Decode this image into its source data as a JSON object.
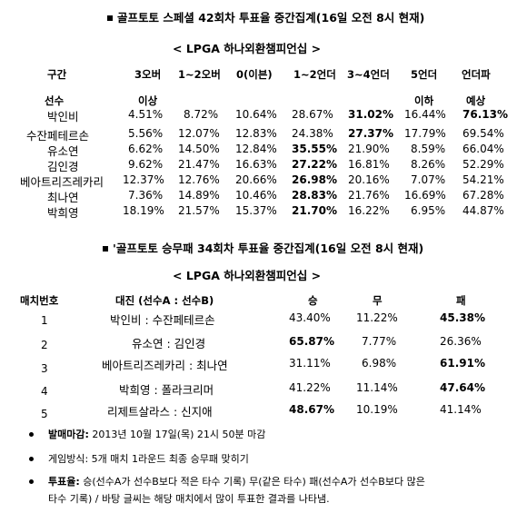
{
  "section1": {
    "title": "골프토토 스페셜 42회차 투표율 중간집계(16일 오전 8시 현재)",
    "subtitle": "< LPGA 하나외환챔피언십 >",
    "header": [
      "구간",
      "3오버",
      "1~2오버",
      "0(이븐)",
      "1~2언더",
      "3~4언더",
      "5언더",
      "언더파"
    ],
    "subheader": {
      "player": "선수",
      "over": "이상",
      "under5": "이하",
      "underpar": "예상"
    },
    "rows": [
      {
        "name": "박인비",
        "values": [
          "4.51%",
          "8.72%",
          "10.64%",
          "28.67%",
          "31.02%",
          "16.44%",
          "76.13%"
        ]
      },
      {
        "name": "수잔페테르손",
        "values": [
          "5.56%",
          "12.07%",
          "12.83%",
          "24.38%",
          "27.37%",
          "17.79%",
          "69.54%"
        ]
      },
      {
        "name": "유소연",
        "values": [
          "6.62%",
          "14.50%",
          "12.84%",
          "35.55%",
          "21.90%",
          "8.59%",
          "66.04%"
        ]
      },
      {
        "name": "김인경",
        "values": [
          "9.62%",
          "21.47%",
          "16.63%",
          "27.22%",
          "16.81%",
          "8.26%",
          "52.29%"
        ]
      },
      {
        "name": "베아트리즈레카리",
        "values": [
          "12.37%",
          "12.76%",
          "20.66%",
          "26.98%",
          "20.16%",
          "7.07%",
          "54.21%"
        ]
      },
      {
        "name": "최나연",
        "values": [
          "7.36%",
          "14.89%",
          "10.46%",
          "28.83%",
          "21.76%",
          "16.69%",
          "67.28%"
        ]
      },
      {
        "name": "박희영",
        "values": [
          "18.19%",
          "21.57%",
          "15.37%",
          "21.70%",
          "16.22%",
          "6.95%",
          "44.87%"
        ]
      }
    ]
  },
  "section2": {
    "title": "'골프토토 승무패 34회차 투표율 중간집계(16일 오전 8시 현재)",
    "subtitle": "< LPGA 하나외환챔피언십 >",
    "header": [
      "매치번호",
      "대진 (선수A : 선수B)",
      "승",
      "무",
      "패"
    ],
    "rows": [
      {
        "no": "1",
        "match": "박인비 : 수잔페테르손",
        "win": "43.40%",
        "draw": "11.22%",
        "lose": "45.38%"
      },
      {
        "no": "2",
        "match": "유소연 : 김인경",
        "win": "65.87%",
        "draw": "7.77%",
        "lose": "26.36%"
      },
      {
        "no": "3",
        "match": "베아트리즈레카리 : 최나연",
        "win": "31.11%",
        "draw": "6.98%",
        "lose": "61.91%"
      },
      {
        "no": "4",
        "match": "박희영 : 폴라크리머",
        "win": "41.22%",
        "draw": "11.14%",
        "lose": "47.64%"
      },
      {
        "no": "5",
        "match": "리제트살라스 : 신지애",
        "win": "48.67%",
        "draw": "10.19%",
        "lose": "41.14%"
      }
    ]
  },
  "notes": {
    "deadline_label": "발매마감:",
    "deadline_value": "2013년 10월 17일(목) 21시 50분 마감",
    "method": "게임방식: 5개 매치 1라운드 최종 승무패 맞히기",
    "rate_label": "투표율:",
    "rate_line1": "승(선수A가 선수B보다 적은 타수 기록) 무(같은 타수) 패(선수A가 선수B보다 많은",
    "rate_line2": "타수 기록) / 바탕 글씨는 해당 매치에서 많이 투표한 결과를 나타냄."
  }
}
